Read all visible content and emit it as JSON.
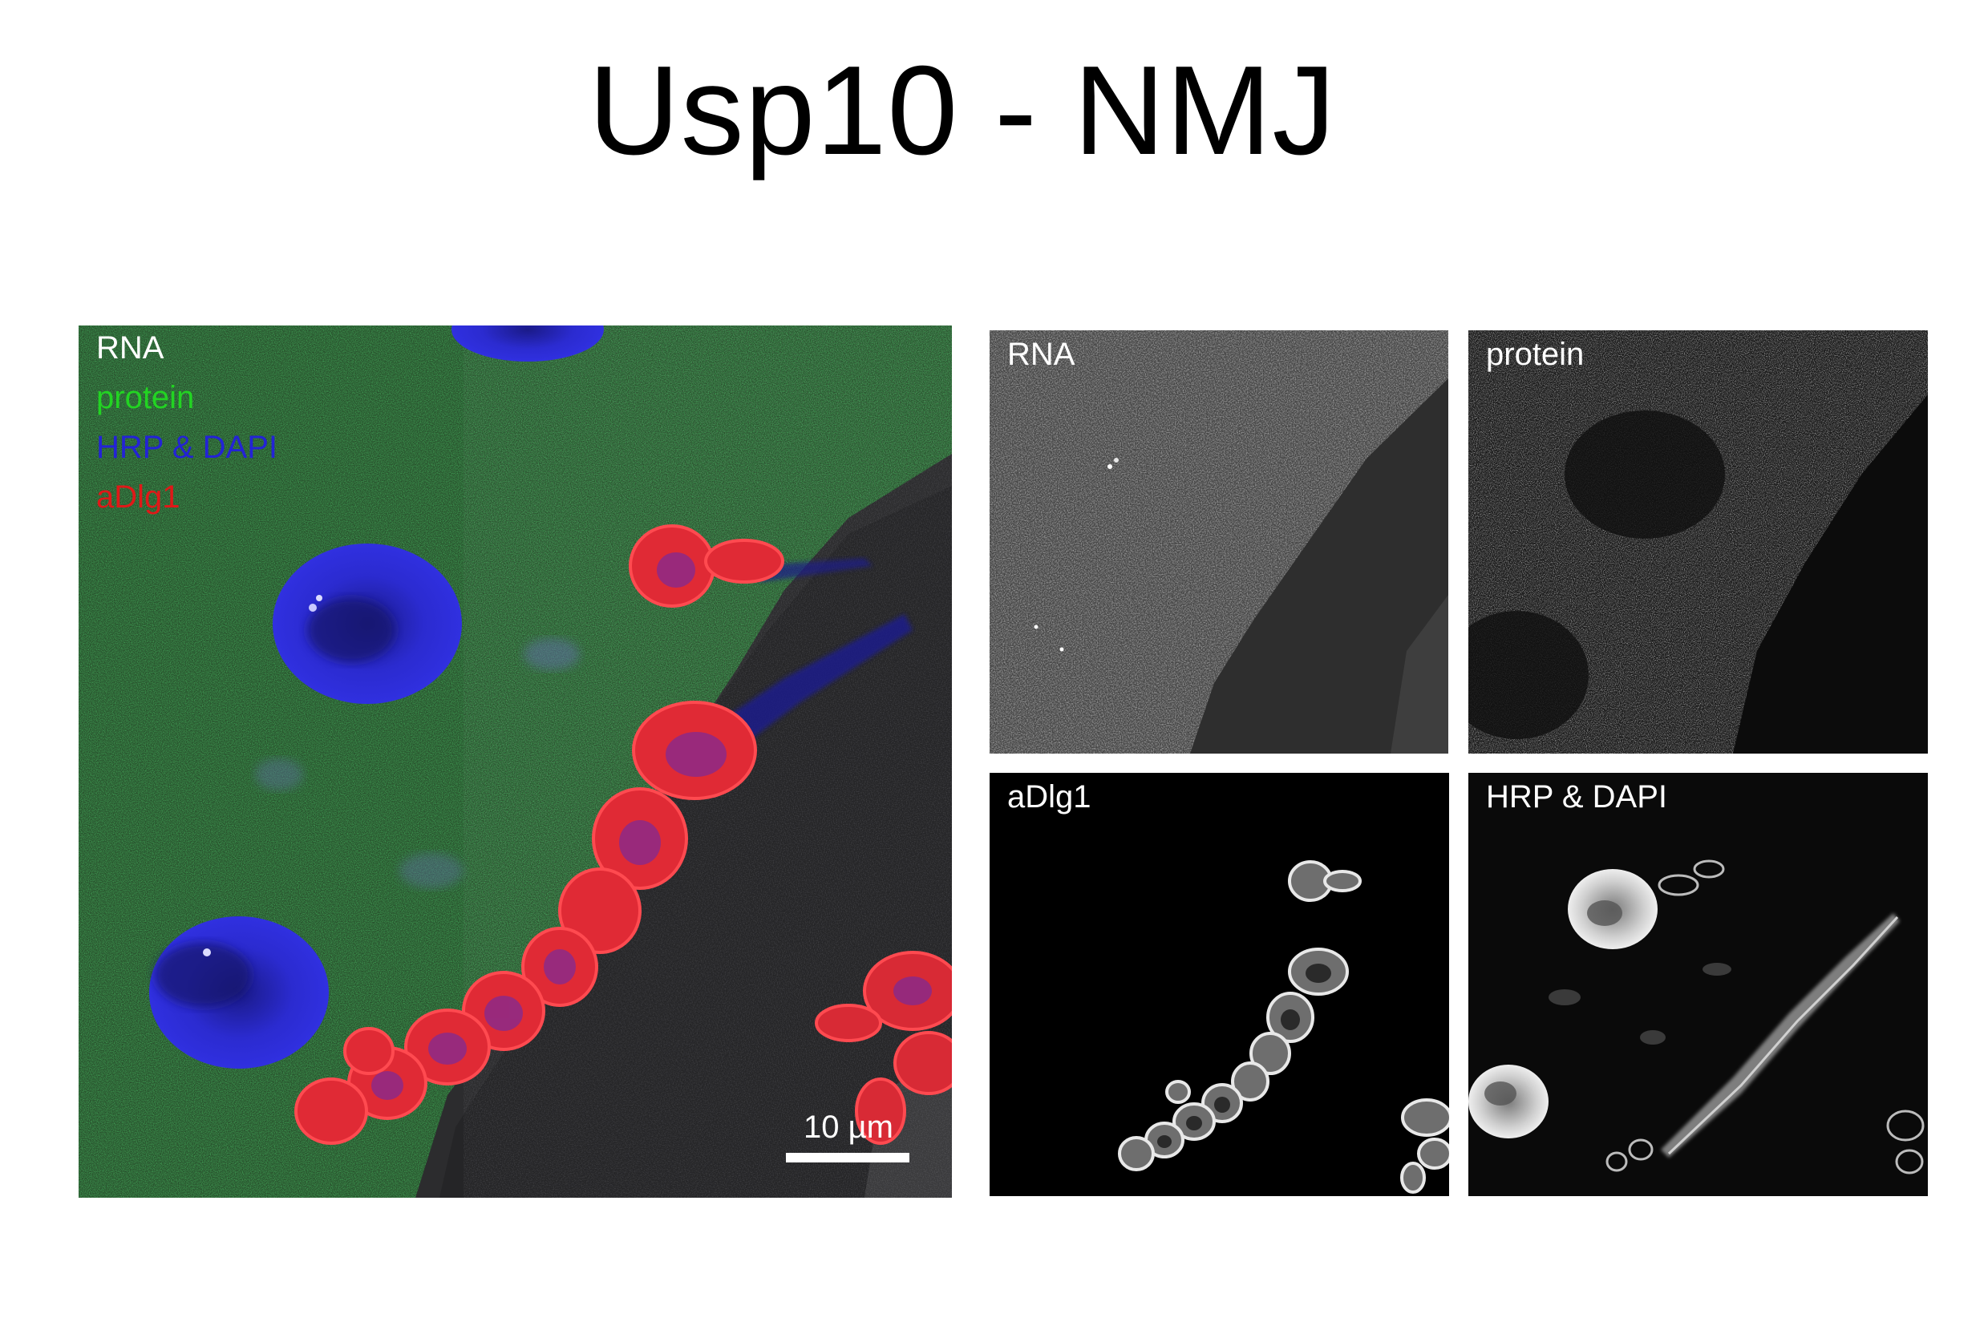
{
  "title": "Usp10 - NMJ",
  "merge": {
    "legend": [
      {
        "text": "RNA",
        "color": "#ffffff"
      },
      {
        "text": "protein",
        "color": "#22d422"
      },
      {
        "text": "HRP & DAPI",
        "color": "#2323d6"
      },
      {
        "text": "aDlg1",
        "color": "#e01818"
      }
    ],
    "scale_label": "10 µm"
  },
  "panels": {
    "rna": "RNA",
    "protein": "protein",
    "dlg": "aDlg1",
    "hrp": "HRP & DAPI"
  }
}
